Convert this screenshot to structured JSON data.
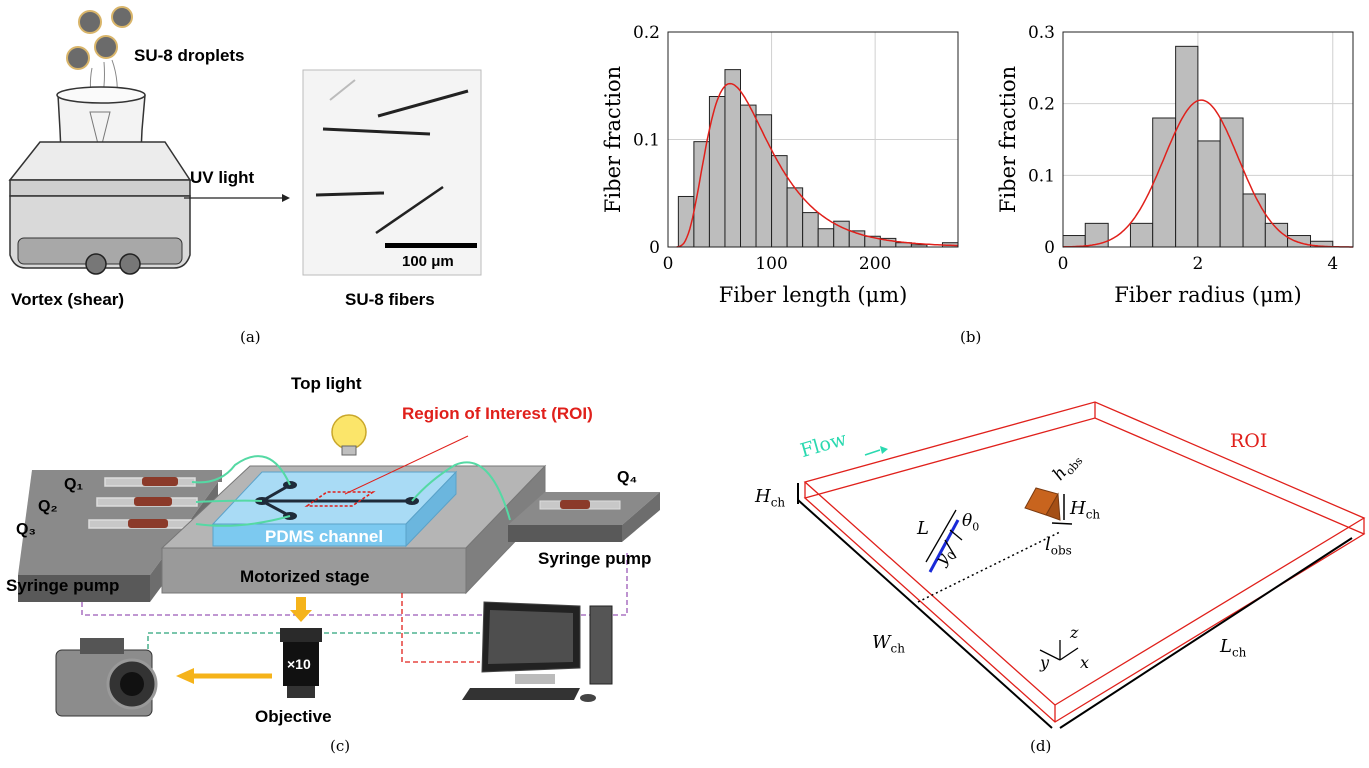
{
  "panel_a": {
    "caption": "(a)",
    "droplets_label": "SU-8 droplets",
    "uv_label": "UV light",
    "vortex_label": "Vortex (shear)",
    "fibers_label": "SU-8 fibers",
    "scalebar_label": "100 μm"
  },
  "panel_b": {
    "caption": "(b)"
  },
  "panel_c": {
    "caption": "(c)",
    "top_light": "Top light",
    "roi_label": "Region of Interest (ROI)",
    "q1": "Q₁",
    "q2": "Q₂",
    "q3": "Q₃",
    "q4": "Q₄",
    "pdms_label": "PDMS channel",
    "stage_label": "Motorized stage",
    "syringe_left": "Syringe pump",
    "syringe_right": "Syringe pump",
    "objective_mag": "×10",
    "objective_label": "Objective",
    "colors": {
      "roi": "#e0201b",
      "tubing": "#55d9a4",
      "arrow": "#f5b31a"
    }
  },
  "panel_d": {
    "caption": "(d)",
    "flow_label": "Flow",
    "roi_label": "ROI",
    "H_ch": "H",
    "H_ch_sub": "ch",
    "W_ch": "W",
    "W_ch_sub": "ch",
    "L_ch": "L",
    "L_ch_sub": "ch",
    "L": "L",
    "theta0": "θ",
    "theta0_sub": "0",
    "y0": "y",
    "y0_sub": "0",
    "h_obs": "h",
    "h_obs_sub": "obs",
    "H_obs": "H",
    "H_obs_sub": "ch",
    "l_obs": "l",
    "l_obs_sub": "obs",
    "axis_x": "x",
    "axis_y": "y",
    "axis_z": "z",
    "colors": {
      "roi": "#e0201b",
      "flow": "#2ad9b0",
      "fiber": "#1a2ad8",
      "obstacle": "#c8641e"
    }
  },
  "chart_data": [
    {
      "type": "bar",
      "xlabel": "Fiber length (μm)",
      "ylabel": "Fiber fraction",
      "xlim": [
        0,
        280
      ],
      "ylim": [
        0,
        0.2
      ],
      "xticks": [
        "0",
        "100",
        "200"
      ],
      "yticks": [
        "0",
        "0.1",
        "0.2"
      ],
      "grid": true,
      "bin_edges": [
        10,
        25,
        40,
        55,
        70,
        85,
        100,
        115,
        130,
        145,
        160,
        175,
        190,
        205,
        220,
        235,
        250,
        265,
        280
      ],
      "values": [
        0.047,
        0.098,
        0.14,
        0.165,
        0.132,
        0.123,
        0.085,
        0.055,
        0.032,
        0.017,
        0.024,
        0.015,
        0.01,
        0.008,
        0.004,
        0.002,
        0.0,
        0.004
      ],
      "fit": {
        "type": "lognormal",
        "color": "#e0201b",
        "peak_x": 60,
        "peak_y": 0.152
      }
    },
    {
      "type": "bar",
      "xlabel": "Fiber radius (μm)",
      "ylabel": "Fiber fraction",
      "xlim": [
        0,
        4.3
      ],
      "ylim": [
        0,
        0.3
      ],
      "xticks": [
        "0",
        "2",
        "4"
      ],
      "yticks": [
        "0",
        "0.1",
        "0.2",
        "0.3"
      ],
      "grid": true,
      "bin_edges": [
        0.0,
        0.33,
        0.67,
        1.0,
        1.33,
        1.67,
        2.0,
        2.33,
        2.67,
        3.0,
        3.33,
        3.67,
        4.0
      ],
      "values": [
        0.016,
        0.033,
        0.0,
        0.033,
        0.18,
        0.28,
        0.148,
        0.18,
        0.074,
        0.033,
        0.016,
        0.008
      ],
      "fit": {
        "type": "gaussian",
        "color": "#e0201b",
        "mean": 2.05,
        "peak_y": 0.205,
        "sigma": 0.55
      }
    }
  ]
}
